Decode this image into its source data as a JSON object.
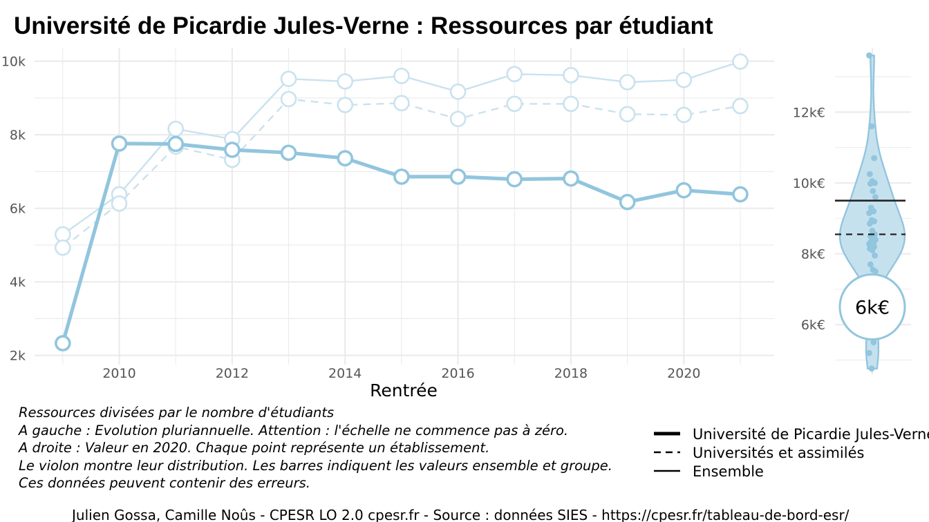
{
  "colors": {
    "accent": "#92c5de",
    "accent_light": "#c9e2ef",
    "violin_fill": "#c6e1ee",
    "grid": "#ebebeb",
    "black": "#000000"
  },
  "title": "Université de Picardie Jules-Verne  :  Ressources par étudiant",
  "chart_data": [
    {
      "type": "line",
      "xlabel": "Rentrée",
      "ylabel": "",
      "xlim": [
        2008.5,
        2021.6
      ],
      "ylim": [
        1750,
        10350
      ],
      "x_ticks": [
        2010,
        2012,
        2014,
        2016,
        2018,
        2020
      ],
      "x_tick_labels": [
        "2010",
        "2012",
        "2014",
        "2016",
        "2018",
        "2020"
      ],
      "y_ticks": [
        2000,
        4000,
        6000,
        8000,
        10000
      ],
      "y_tick_labels": [
        "2k",
        "4k",
        "6k",
        "8k",
        "10k"
      ],
      "x": [
        2009,
        2010,
        2011,
        2012,
        2013,
        2014,
        2015,
        2016,
        2017,
        2018,
        2019,
        2020,
        2021
      ],
      "series": [
        {
          "name": "Université de Picardie Jules-Verne",
          "style": "thick",
          "values": [
            2330,
            7760,
            7750,
            7590,
            7510,
            7360,
            6860,
            6860,
            6790,
            6810,
            6170,
            6490,
            6380
          ]
        },
        {
          "name": "Universités et assimilés",
          "style": "dashed",
          "values": [
            4930,
            6130,
            7680,
            7320,
            8970,
            8810,
            8860,
            8430,
            8840,
            8840,
            8560,
            8540,
            8780
          ]
        },
        {
          "name": "Ensemble",
          "style": "thin",
          "values": [
            5290,
            6380,
            8160,
            7880,
            9520,
            9450,
            9600,
            9170,
            9650,
            9620,
            9430,
            9490,
            9990
          ]
        }
      ],
      "grid": true
    },
    {
      "type": "violin",
      "ylim": [
        4600,
        13800
      ],
      "y_ticks": [
        6000,
        8000,
        10000,
        12000
      ],
      "y_tick_labels": [
        "6k€",
        "8k€",
        "10k€",
        "12k€"
      ],
      "points": [
        13600,
        11600,
        10700,
        10250,
        10050,
        10000,
        9980,
        9770,
        9600,
        9300,
        9200,
        9150,
        8950,
        8920,
        8850,
        8650,
        8550,
        8500,
        8450,
        8400,
        8350,
        8320,
        8280,
        8250,
        8200,
        8150,
        8100,
        7950,
        7700,
        7550,
        7500,
        5800,
        5500,
        5200,
        4760
      ],
      "hlines": [
        {
          "name": "Ensemble",
          "value": 9500,
          "style": "solid"
        },
        {
          "name": "Universités et assimilés",
          "value": 8550,
          "style": "dashed"
        }
      ],
      "highlight": {
        "value": 6500,
        "label": "6k€"
      },
      "grid": true
    }
  ],
  "notes": [
    "Ressources divisées par le nombre d'étudiants",
    "A gauche : Evolution pluriannuelle. Attention : l'échelle ne commence pas à zéro.",
    "A droite : Valeur en 2020. Chaque point représente un établissement.",
    "Le violon montre leur distribution. Les barres indiquent les valeurs ensemble et groupe.",
    "Ces données peuvent contenir des erreurs."
  ],
  "legend": [
    {
      "label": "Université de Picardie Jules-Verne",
      "style": "thick"
    },
    {
      "label": "Universités et assimilés",
      "style": "dashed"
    },
    {
      "label": "Ensemble",
      "style": "thin"
    }
  ],
  "caption": "Julien Gossa, Camille Noûs - CPESR LO 2.0 cpesr.fr - Source : données SIES - https://cpesr.fr/tableau-de-bord-esr/"
}
